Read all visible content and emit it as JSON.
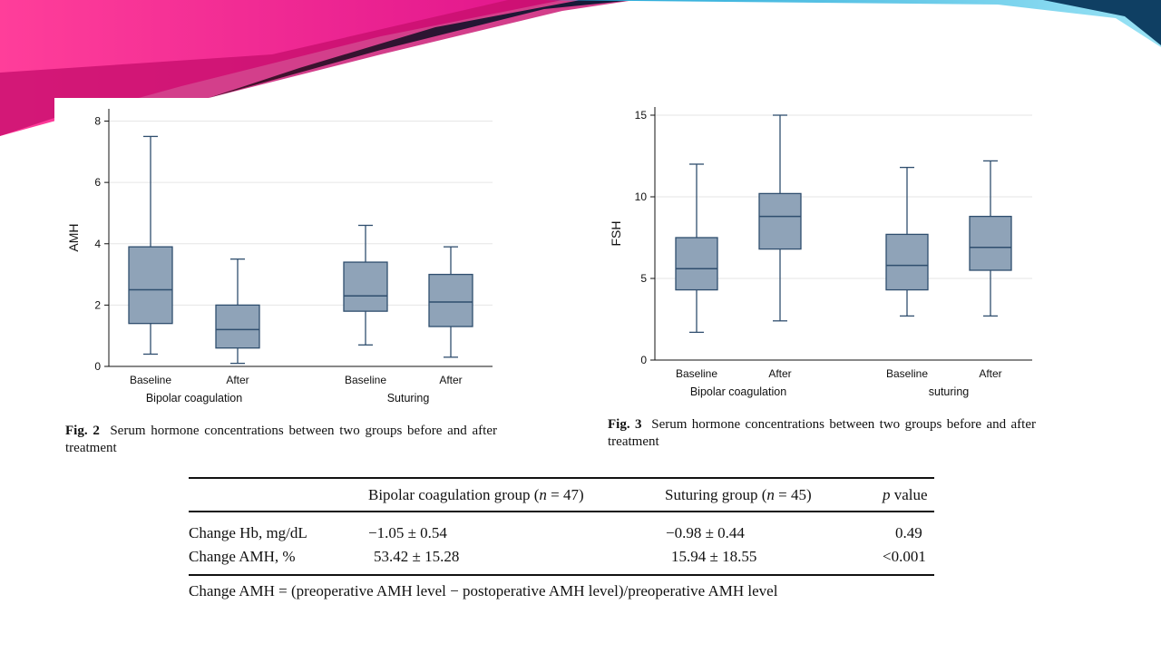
{
  "slide": {
    "banner_colors": [
      "#ff3e9a",
      "#e0148c",
      "#4a0f2a",
      "#0f1b3a",
      "#1fa5d6",
      "#9ae3f5"
    ]
  },
  "figures": [
    {
      "caption_label": "Fig. 2",
      "caption_text": "Serum hormone concentrations between two groups before and after treatment"
    },
    {
      "caption_label": "Fig. 3",
      "caption_text": "Serum hormone concentrations between two groups before and after treatment"
    }
  ],
  "chart_data": [
    {
      "type": "box",
      "ylabel": "AMH",
      "ylim": [
        0,
        8.4
      ],
      "yticks": [
        0,
        2,
        4,
        6,
        8
      ],
      "grid": true,
      "box_color": "#8fa3b8",
      "line_color": "#2f4e6e",
      "group_labels": [
        "Bipolar coagulation",
        "Suturing"
      ],
      "boxes": [
        {
          "group": 0,
          "label": "Baseline",
          "min": 0.4,
          "q1": 1.4,
          "median": 2.5,
          "q3": 3.9,
          "max": 7.5
        },
        {
          "group": 0,
          "label": "After",
          "min": 0.1,
          "q1": 0.6,
          "median": 1.2,
          "q3": 2.0,
          "max": 3.5
        },
        {
          "group": 1,
          "label": "Baseline",
          "min": 0.7,
          "q1": 1.8,
          "median": 2.3,
          "q3": 3.4,
          "max": 4.6
        },
        {
          "group": 1,
          "label": "After",
          "min": 0.3,
          "q1": 1.3,
          "median": 2.1,
          "q3": 3.0,
          "max": 3.9
        }
      ]
    },
    {
      "type": "box",
      "ylabel": "FSH",
      "ylim": [
        0,
        15.5
      ],
      "yticks": [
        0,
        5,
        10,
        15
      ],
      "grid": true,
      "box_color": "#8fa3b8",
      "line_color": "#2f4e6e",
      "group_labels": [
        "Bipolar coagulation",
        "suturing"
      ],
      "boxes": [
        {
          "group": 0,
          "label": "Baseline",
          "min": 1.7,
          "q1": 4.3,
          "median": 5.6,
          "q3": 7.5,
          "max": 12.0
        },
        {
          "group": 0,
          "label": "After",
          "min": 2.4,
          "q1": 6.8,
          "median": 8.8,
          "q3": 10.2,
          "max": 15.0
        },
        {
          "group": 1,
          "label": "Baseline",
          "min": 2.7,
          "q1": 4.3,
          "median": 5.8,
          "q3": 7.7,
          "max": 11.8
        },
        {
          "group": 1,
          "label": "After",
          "min": 2.7,
          "q1": 5.5,
          "median": 6.9,
          "q3": 8.8,
          "max": 12.2
        }
      ]
    }
  ],
  "table": {
    "headers": [
      "Bipolar coagulation group (",
      "n",
      " = 47)",
      "Suturing group (",
      "n",
      " = 45)",
      "p",
      " value"
    ],
    "rows": [
      {
        "label": "Change Hb, mg/dL",
        "bipolar": "−1.05 ± 0.54",
        "suturing": "−0.98 ± 0.44",
        "p": "0.49"
      },
      {
        "label": "Change AMH, %",
        "bipolar": "53.42 ± 15.28",
        "suturing": "15.94 ± 18.55",
        "p": "<0.001"
      }
    ],
    "footnote": "Change AMH = (preoperative AMH level − postoperative AMH level)/preoperative AMH level"
  }
}
